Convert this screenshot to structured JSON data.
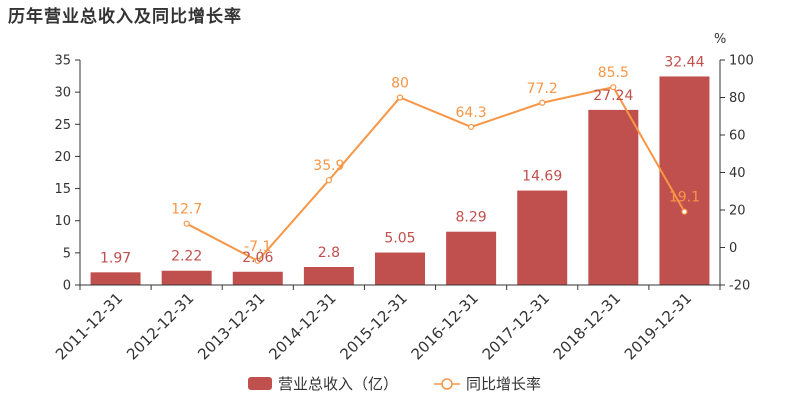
{
  "title": "历年营业总收入及同比增长率",
  "colors": {
    "bar": "#c0504d",
    "line": "#f79646",
    "axis": "#333333"
  },
  "chart_data": {
    "type": "bar",
    "categories": [
      "2011-12-31",
      "2012-12-31",
      "2013-12-31",
      "2014-12-31",
      "2015-12-31",
      "2016-12-31",
      "2017-12-31",
      "2018-12-31",
      "2019-12-31"
    ],
    "series": [
      {
        "name": "营业总收入（亿）",
        "type": "bar",
        "axis": "left",
        "values": [
          1.97,
          2.22,
          2.06,
          2.8,
          5.05,
          8.29,
          14.69,
          27.24,
          32.44
        ]
      },
      {
        "name": "同比增长率",
        "type": "line",
        "axis": "right",
        "values": [
          null,
          12.7,
          -7.1,
          35.9,
          80,
          64.3,
          77.2,
          85.5,
          19.1
        ]
      }
    ],
    "y_left": {
      "min": 0,
      "max": 35,
      "ticks": [
        "0",
        "5",
        "10",
        "15",
        "20",
        "25",
        "30",
        "35"
      ]
    },
    "y_right": {
      "min": -20,
      "max": 100,
      "ticks": [
        "-20",
        "0",
        "20",
        "40",
        "60",
        "80",
        "100"
      ],
      "unit": "%"
    },
    "bar_labels": [
      "1.97",
      "2.22",
      "2.06",
      "2.8",
      "5.05",
      "8.29",
      "14.69",
      "27.24",
      "32.44"
    ],
    "line_labels": [
      "",
      "12.7",
      "-7.1",
      "35.9",
      "80",
      "64.3",
      "77.2",
      "85.5",
      "19.1"
    ],
    "legend_position": "bottom",
    "grid": false
  }
}
